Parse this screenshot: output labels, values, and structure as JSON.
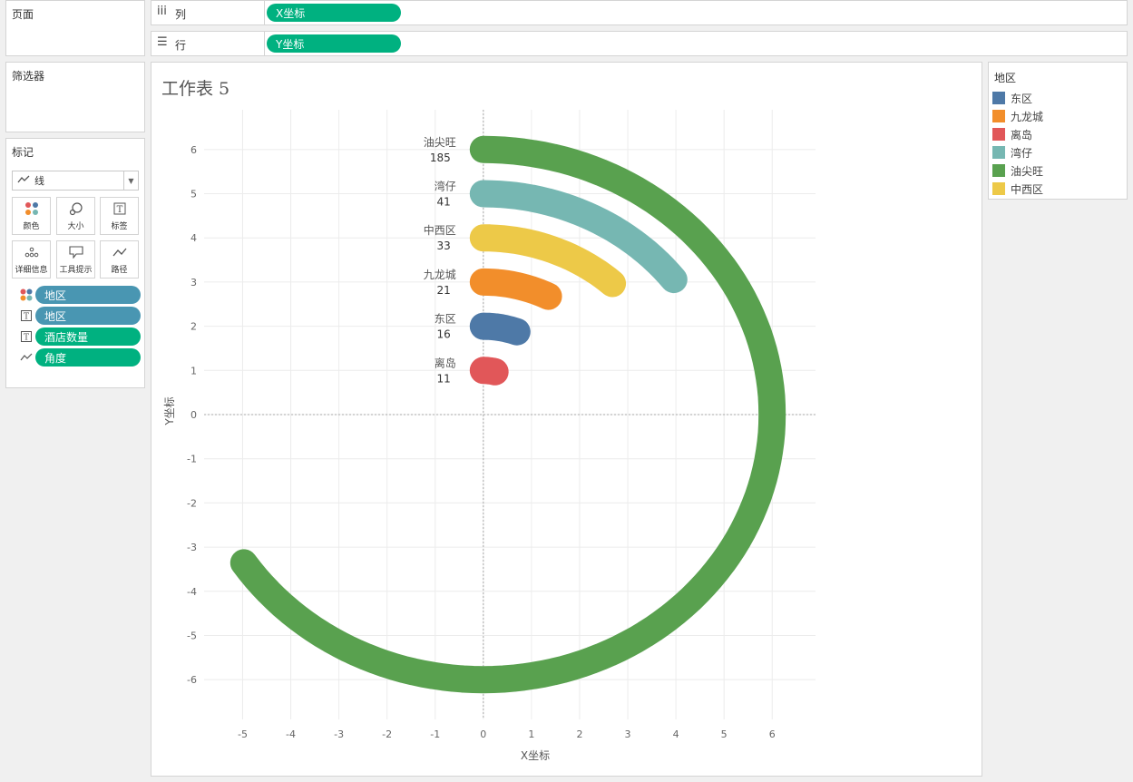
{
  "left": {
    "pages_title": "页面",
    "filters_title": "筛选器",
    "marks_title": "标记",
    "mark_type": "线",
    "buttons": [
      "颜色",
      "大小",
      "标签",
      "详细信息",
      "工具提示",
      "路径"
    ],
    "fields": [
      "地区",
      "地区",
      "酒店数量",
      "角度"
    ]
  },
  "shelves": {
    "columns_label": "列",
    "columns_pill": "X坐标",
    "rows_label": "行",
    "rows_pill": "Y坐标"
  },
  "sheet": {
    "title": "工作表 5"
  },
  "legend": {
    "title": "地区",
    "items": [
      {
        "label": "东区",
        "color": "#4e79a7"
      },
      {
        "label": "九龙城",
        "color": "#f28e2b"
      },
      {
        "label": "离岛",
        "color": "#e15759"
      },
      {
        "label": "湾仔",
        "color": "#76b7b2"
      },
      {
        "label": "油尖旺",
        "color": "#59a14f"
      },
      {
        "label": "中西区",
        "color": "#edc948"
      }
    ]
  },
  "chart_data": {
    "type": "line",
    "xlabel": "X坐标",
    "ylabel": "Y坐标",
    "xlim": [
      -5.8,
      6.9
    ],
    "ylim": [
      -6.9,
      6.9
    ],
    "xticks": [
      -5,
      -4,
      -3,
      -2,
      -1,
      0,
      1,
      2,
      3,
      4,
      5,
      6
    ],
    "yticks": [
      6,
      5,
      4,
      3,
      2,
      1,
      0,
      -1,
      -2,
      -3,
      -4,
      -5,
      -6
    ],
    "series": [
      {
        "name": "油尖旺",
        "value": 185,
        "radius": 6,
        "color": "#59a14f"
      },
      {
        "name": "湾仔",
        "value": 41,
        "radius": 5,
        "color": "#76b7b2"
      },
      {
        "name": "中西区",
        "value": 33,
        "radius": 4,
        "color": "#edc948"
      },
      {
        "name": "九龙城",
        "value": 21,
        "radius": 3,
        "color": "#f28e2b"
      },
      {
        "name": "东区",
        "value": 16,
        "radius": 2,
        "color": "#4e79a7"
      },
      {
        "name": "离岛",
        "value": 11,
        "radius": 1,
        "color": "#e15759"
      }
    ]
  }
}
